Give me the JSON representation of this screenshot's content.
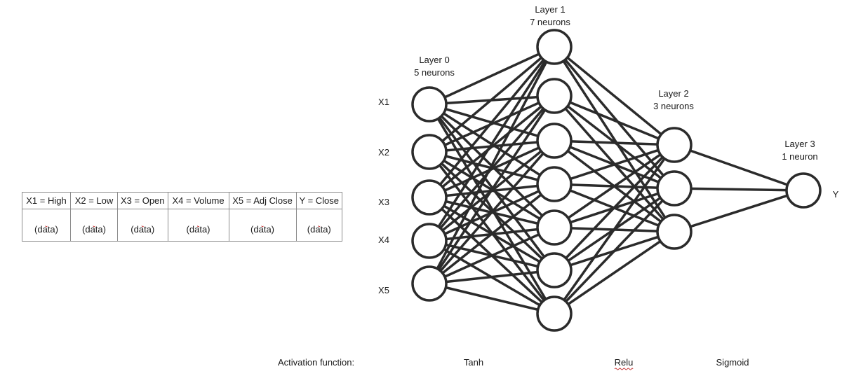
{
  "table": {
    "headers": [
      "X1 = High",
      "X2 = Low",
      "X3 = Open",
      "X4 = Volume",
      "X5 = Adj Close",
      "Y = Close"
    ],
    "values": [
      "(data)",
      "(data)",
      "(data)",
      "(data)",
      "(data)",
      "(data)"
    ]
  },
  "layers": [
    {
      "name": "Layer 0",
      "count_label": "5  neurons",
      "neurons": 5
    },
    {
      "name": "Layer 1",
      "count_label": "7  neurons",
      "neurons": 7
    },
    {
      "name": "Layer 2",
      "count_label": "3  neurons",
      "neurons": 3
    },
    {
      "name": "Layer 3",
      "count_label": "1  neuron",
      "neurons": 1
    }
  ],
  "inputs": [
    "X1",
    "X2",
    "X3",
    "X4",
    "X5"
  ],
  "output": "Y",
  "activation": {
    "label": "Activation function:",
    "functions": [
      "Tanh",
      "Relu",
      "Sigmoid"
    ]
  },
  "colors": {
    "line": "#2b2b2b",
    "text": "#1a1a1a",
    "spellcheck": "#c23030"
  }
}
